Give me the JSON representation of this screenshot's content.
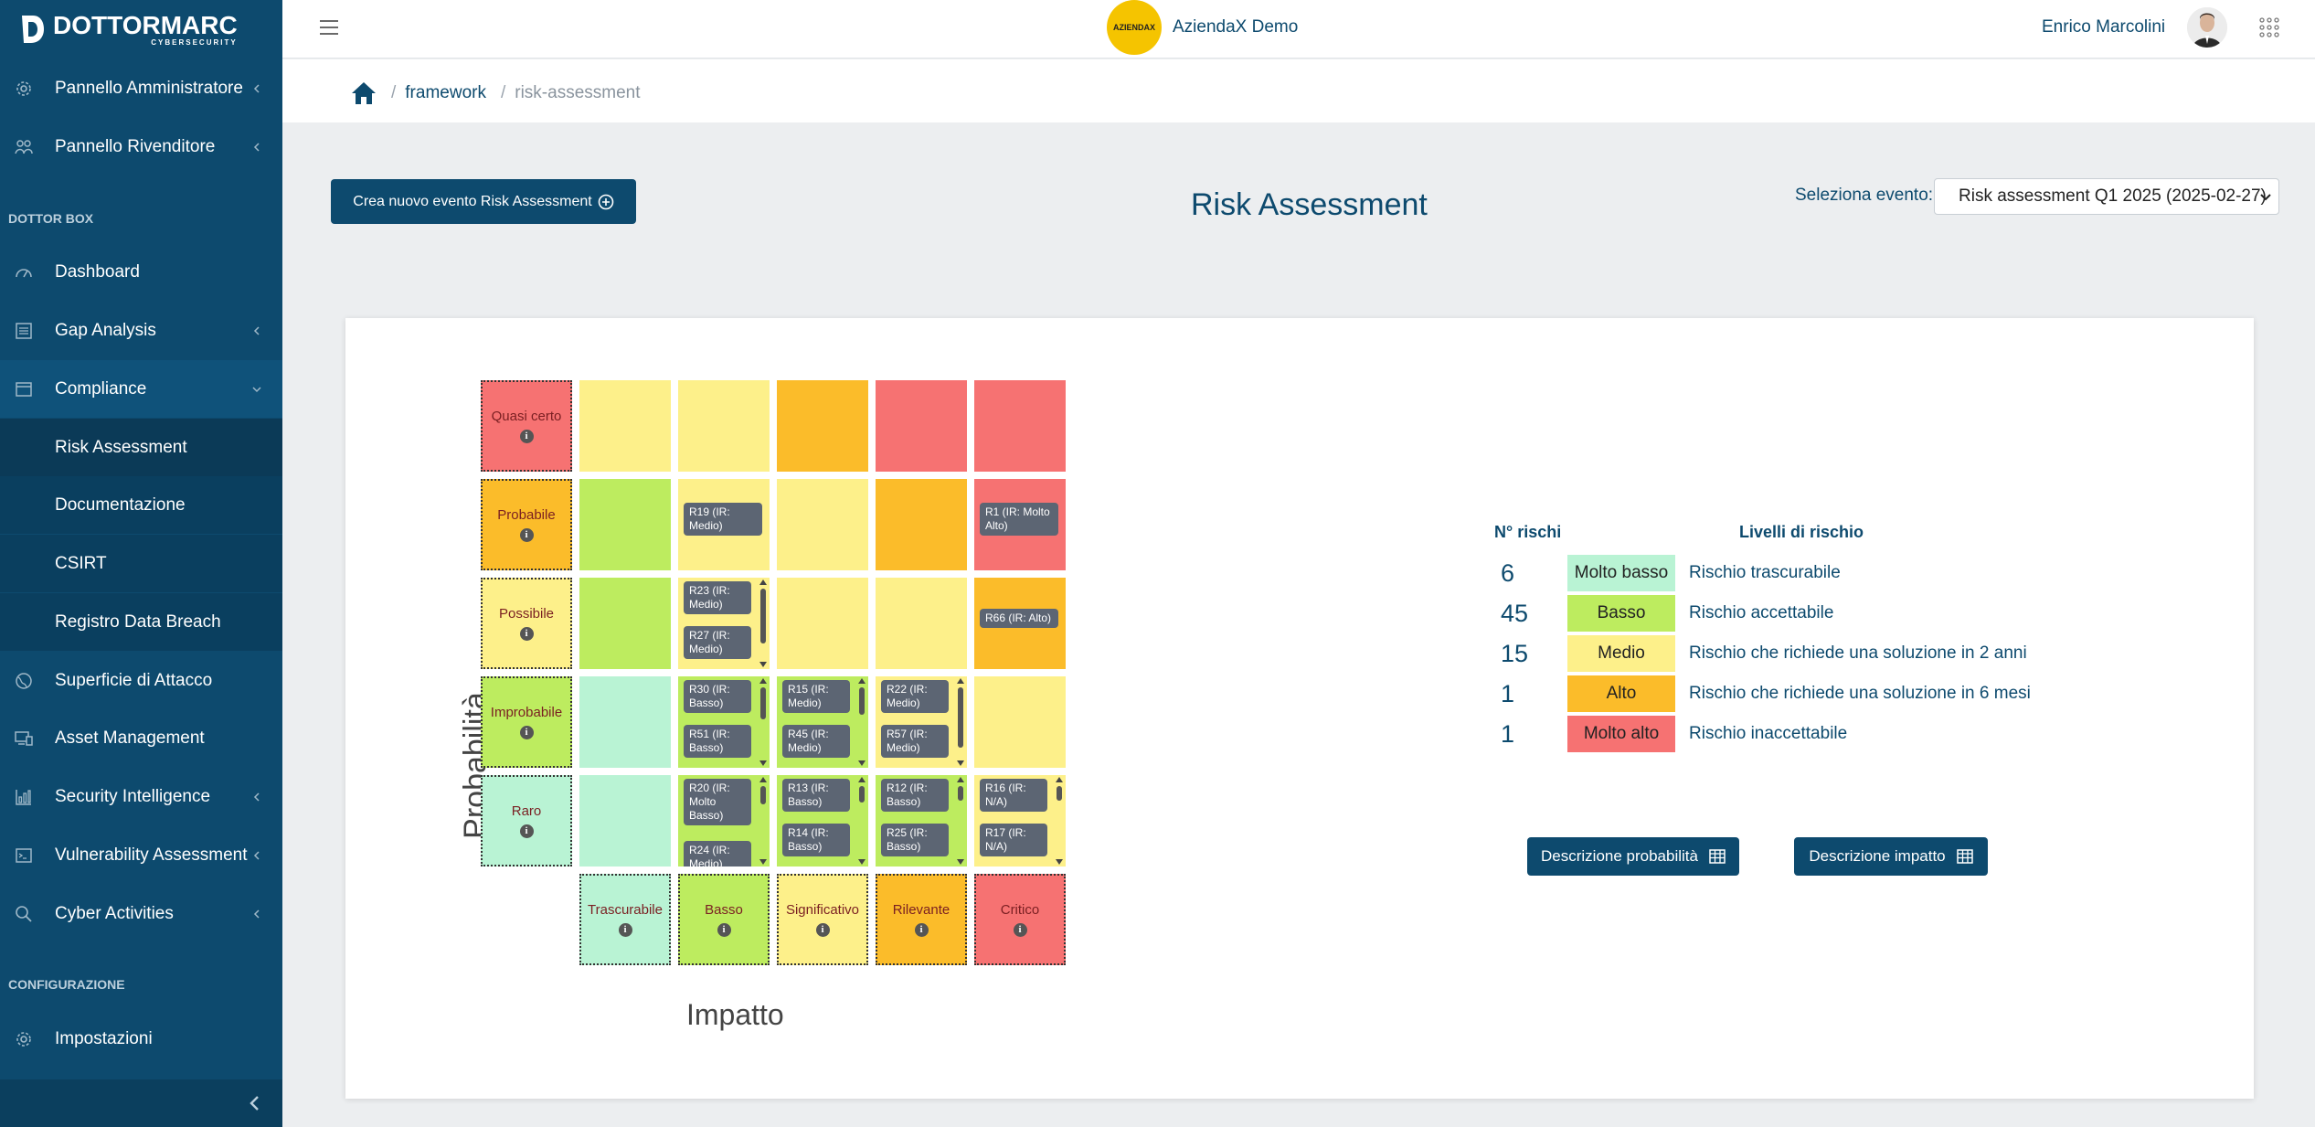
{
  "brand": {
    "name": "DOTTORMARC",
    "tagline": "CYBERSECURITY"
  },
  "sidebar": {
    "items": [
      {
        "label": "Pannello Amministratore",
        "icon": "gear-icon"
      },
      {
        "label": "Pannello Rivenditore",
        "icon": "people-icon"
      },
      {
        "label": "Dashboard",
        "icon": "gauge-icon"
      },
      {
        "label": "Gap Analysis",
        "icon": "list-icon"
      },
      {
        "label": "Compliance",
        "icon": "window-icon"
      },
      {
        "label": "Risk Assessment"
      },
      {
        "label": "Documentazione"
      },
      {
        "label": "CSIRT"
      },
      {
        "label": "Registro Data Breach"
      },
      {
        "label": "Superficie di Attacco",
        "icon": "globe-icon"
      },
      {
        "label": "Asset Management",
        "icon": "devices-icon"
      },
      {
        "label": "Security Intelligence",
        "icon": "bar-chart-icon"
      },
      {
        "label": "Vulnerability Assessment",
        "icon": "terminal-icon"
      },
      {
        "label": "Cyber Activities",
        "icon": "search-icon"
      },
      {
        "label": "Impostazioni",
        "icon": "gear-icon"
      }
    ],
    "sections": {
      "dottor_box": "DOTTOR BOX",
      "configurazione": "CONFIGURAZIONE"
    }
  },
  "topbar": {
    "org_badge": "AZIENDAX",
    "org_name": "AziendaX Demo",
    "user_name": "Enrico Marcolini"
  },
  "breadcrumb": {
    "items": [
      "framework",
      "risk-assessment"
    ]
  },
  "header": {
    "new_button": "Crea nuovo evento Risk Assessment",
    "title": "Risk Assessment",
    "event_label": "Seleziona evento:",
    "event_selected": "Risk assessment Q1 2025 (2025-02-27)"
  },
  "matrix": {
    "y_label": "Probabilità",
    "x_label": "Impatto",
    "probability": [
      "Quasi certo",
      "Probabile",
      "Possibile",
      "Improbabile",
      "Raro"
    ],
    "impact": [
      "Trascurabile",
      "Basso",
      "Significativo",
      "Rilevante",
      "Critico"
    ],
    "info_glyph": "i",
    "chips": {
      "r19": "R19 (IR: Medio)",
      "r1": "R1 (IR: Molto Alto)",
      "r23": "R23 (IR: Medio)",
      "r27": "R27 (IR: Medio)",
      "r66": "R66 (IR: Alto)",
      "r30": "R30 (IR: Basso)",
      "r51": "R51 (IR: Basso)",
      "r15": "R15 (IR: Medio)",
      "r45": "R45 (IR: Medio)",
      "r22": "R22 (IR: Medio)",
      "r57": "R57 (IR: Medio)",
      "r20": "R20 (IR: Molto Basso)",
      "r24": "R24 (IR: Medio)",
      "r13": "R13 (IR: Basso)",
      "r14": "R14 (IR: Basso)",
      "r12": "R12 (IR: Basso)",
      "r25": "R25 (IR: Basso)",
      "r16": "R16 (IR: N/A)",
      "r17": "R17 (IR: N/A)"
    }
  },
  "legend": {
    "col_count": "N° rischi",
    "col_levels": "Livelli di rischio",
    "rows": [
      {
        "count": "6",
        "level": "Molto basso",
        "desc": "Rischio trascurabile",
        "color": "#b9f3d4"
      },
      {
        "count": "45",
        "level": "Basso",
        "desc": "Rischio accettabile",
        "color": "#bdec5f"
      },
      {
        "count": "15",
        "level": "Medio",
        "desc": "Rischio che richiede una soluzione in 2 anni",
        "color": "#fdf08a"
      },
      {
        "count": "1",
        "level": "Alto",
        "desc": "Rischio che richiede una soluzione in 6 mesi",
        "color": "#fbbc2a"
      },
      {
        "count": "1",
        "level": "Molto alto",
        "desc": "Rischio inaccettabile",
        "color": "#f67272"
      }
    ]
  },
  "buttons": {
    "desc_probability": "Descrizione probabilità",
    "desc_impact": "Descrizione impatto"
  },
  "colors": {
    "primary": "#0d4a6e",
    "molto_basso": "#b9f3d4",
    "basso": "#bdec5f",
    "medio": "#fdf08a",
    "alto": "#fbbc2a",
    "molto_alto": "#f67272",
    "chip": "#5c6573"
  }
}
